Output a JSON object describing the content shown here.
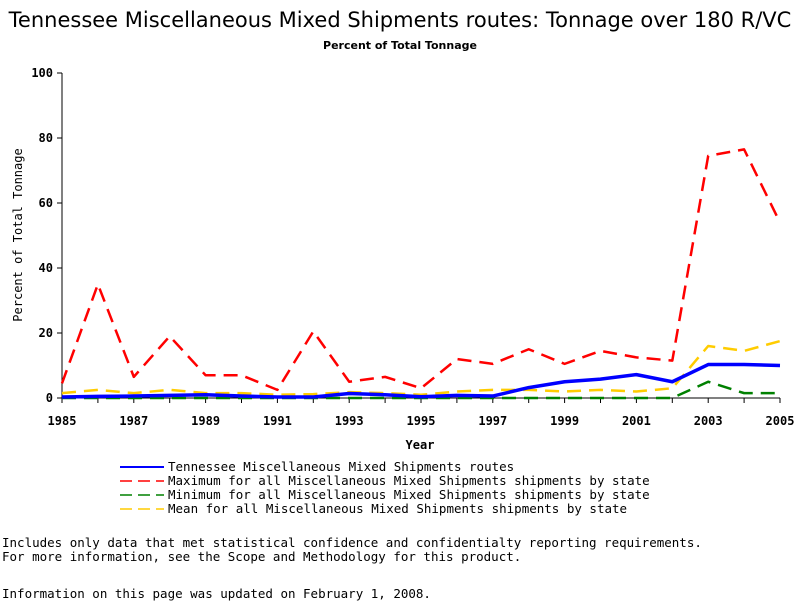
{
  "chart_data": {
    "type": "line",
    "title": "Tennessee Miscellaneous Mixed Shipments routes: Tonnage over 180 R/VC",
    "subtitle": "Percent of Total Tonnage",
    "xlabel": "Year",
    "ylabel": "Percent of Total Tonnage",
    "xlim": [
      1985,
      2005
    ],
    "ylim": [
      0,
      100
    ],
    "xticks": [
      1985,
      1987,
      1989,
      1991,
      1993,
      1995,
      1997,
      1999,
      2001,
      2003,
      2005
    ],
    "yticks": [
      0,
      20,
      40,
      60,
      80,
      100
    ],
    "grid": false,
    "legend_position": "bottom",
    "x": [
      1985,
      1986,
      1987,
      1988,
      1989,
      1990,
      1991,
      1992,
      1993,
      1994,
      1995,
      1996,
      1997,
      1998,
      1999,
      2000,
      2001,
      2002,
      2003,
      2004,
      2005
    ],
    "series": [
      {
        "name": "Tennessee Miscellaneous Mixed Shipments routes",
        "color": "#0000ff",
        "style": "solid",
        "values": [
          0.3,
          0.5,
          0.6,
          0.8,
          1.0,
          0.6,
          0.3,
          0.3,
          1.4,
          1.0,
          0.4,
          0.8,
          0.6,
          3.2,
          5.0,
          5.8,
          7.2,
          5.0,
          10.3,
          10.3,
          10.0
        ]
      },
      {
        "name": "Maximum for all Miscellaneous Mixed Shipments shipments by state",
        "color": "#ff0000",
        "style": "dashed",
        "values": [
          4.5,
          35.0,
          6.5,
          19.0,
          7.0,
          7.0,
          2.5,
          20.5,
          5.0,
          6.5,
          3.0,
          12.0,
          10.5,
          15.0,
          10.5,
          14.5,
          12.5,
          11.5,
          74.5,
          76.5,
          54.0
        ]
      },
      {
        "name": "Minimum for all Miscellaneous Mixed Shipments shipments by state",
        "color": "#008000",
        "style": "dashed",
        "values": [
          0.0,
          0.0,
          0.0,
          0.0,
          0.0,
          0.0,
          0.0,
          0.0,
          0.0,
          0.0,
          0.0,
          0.0,
          0.0,
          0.0,
          0.0,
          0.0,
          0.0,
          0.0,
          5.0,
          1.5,
          1.5
        ]
      },
      {
        "name": "Mean for all Miscellaneous Mixed Shipments shipments by state",
        "color": "#ffcc00",
        "style": "dashed",
        "values": [
          1.5,
          2.5,
          1.5,
          2.5,
          1.5,
          1.5,
          1.0,
          1.2,
          1.8,
          1.5,
          1.0,
          2.0,
          2.5,
          2.5,
          2.0,
          2.5,
          2.0,
          3.0,
          16.0,
          14.5,
          17.5
        ]
      }
    ]
  },
  "notes": {
    "line1": "Includes only data that met statistical confidence and confidentialty reporting requirements.",
    "line2": "For more information, see the Scope and Methodology for this product.",
    "updated": "Information on this page was updated on February 1, 2008."
  }
}
